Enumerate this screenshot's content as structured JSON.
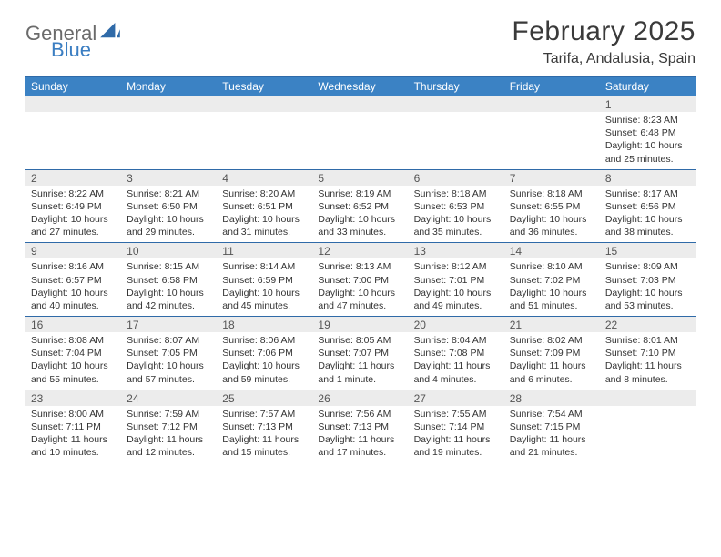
{
  "logo": {
    "word1": "General",
    "word2": "Blue",
    "color1": "#6b6b6b",
    "color2": "#3b7ec2"
  },
  "title": "February 2025",
  "location": "Tarifa, Andalusia, Spain",
  "colors": {
    "header_bar": "#3b82c4",
    "header_border": "#2f6aa8",
    "daynum_bg": "#ececec",
    "text": "#333333"
  },
  "weekdays": [
    "Sunday",
    "Monday",
    "Tuesday",
    "Wednesday",
    "Thursday",
    "Friday",
    "Saturday"
  ],
  "weeks": [
    [
      {
        "n": "",
        "sunrise": "",
        "sunset": "",
        "daylight": ""
      },
      {
        "n": "",
        "sunrise": "",
        "sunset": "",
        "daylight": ""
      },
      {
        "n": "",
        "sunrise": "",
        "sunset": "",
        "daylight": ""
      },
      {
        "n": "",
        "sunrise": "",
        "sunset": "",
        "daylight": ""
      },
      {
        "n": "",
        "sunrise": "",
        "sunset": "",
        "daylight": ""
      },
      {
        "n": "",
        "sunrise": "",
        "sunset": "",
        "daylight": ""
      },
      {
        "n": "1",
        "sunrise": "Sunrise: 8:23 AM",
        "sunset": "Sunset: 6:48 PM",
        "daylight": "Daylight: 10 hours and 25 minutes."
      }
    ],
    [
      {
        "n": "2",
        "sunrise": "Sunrise: 8:22 AM",
        "sunset": "Sunset: 6:49 PM",
        "daylight": "Daylight: 10 hours and 27 minutes."
      },
      {
        "n": "3",
        "sunrise": "Sunrise: 8:21 AM",
        "sunset": "Sunset: 6:50 PM",
        "daylight": "Daylight: 10 hours and 29 minutes."
      },
      {
        "n": "4",
        "sunrise": "Sunrise: 8:20 AM",
        "sunset": "Sunset: 6:51 PM",
        "daylight": "Daylight: 10 hours and 31 minutes."
      },
      {
        "n": "5",
        "sunrise": "Sunrise: 8:19 AM",
        "sunset": "Sunset: 6:52 PM",
        "daylight": "Daylight: 10 hours and 33 minutes."
      },
      {
        "n": "6",
        "sunrise": "Sunrise: 8:18 AM",
        "sunset": "Sunset: 6:53 PM",
        "daylight": "Daylight: 10 hours and 35 minutes."
      },
      {
        "n": "7",
        "sunrise": "Sunrise: 8:18 AM",
        "sunset": "Sunset: 6:55 PM",
        "daylight": "Daylight: 10 hours and 36 minutes."
      },
      {
        "n": "8",
        "sunrise": "Sunrise: 8:17 AM",
        "sunset": "Sunset: 6:56 PM",
        "daylight": "Daylight: 10 hours and 38 minutes."
      }
    ],
    [
      {
        "n": "9",
        "sunrise": "Sunrise: 8:16 AM",
        "sunset": "Sunset: 6:57 PM",
        "daylight": "Daylight: 10 hours and 40 minutes."
      },
      {
        "n": "10",
        "sunrise": "Sunrise: 8:15 AM",
        "sunset": "Sunset: 6:58 PM",
        "daylight": "Daylight: 10 hours and 42 minutes."
      },
      {
        "n": "11",
        "sunrise": "Sunrise: 8:14 AM",
        "sunset": "Sunset: 6:59 PM",
        "daylight": "Daylight: 10 hours and 45 minutes."
      },
      {
        "n": "12",
        "sunrise": "Sunrise: 8:13 AM",
        "sunset": "Sunset: 7:00 PM",
        "daylight": "Daylight: 10 hours and 47 minutes."
      },
      {
        "n": "13",
        "sunrise": "Sunrise: 8:12 AM",
        "sunset": "Sunset: 7:01 PM",
        "daylight": "Daylight: 10 hours and 49 minutes."
      },
      {
        "n": "14",
        "sunrise": "Sunrise: 8:10 AM",
        "sunset": "Sunset: 7:02 PM",
        "daylight": "Daylight: 10 hours and 51 minutes."
      },
      {
        "n": "15",
        "sunrise": "Sunrise: 8:09 AM",
        "sunset": "Sunset: 7:03 PM",
        "daylight": "Daylight: 10 hours and 53 minutes."
      }
    ],
    [
      {
        "n": "16",
        "sunrise": "Sunrise: 8:08 AM",
        "sunset": "Sunset: 7:04 PM",
        "daylight": "Daylight: 10 hours and 55 minutes."
      },
      {
        "n": "17",
        "sunrise": "Sunrise: 8:07 AM",
        "sunset": "Sunset: 7:05 PM",
        "daylight": "Daylight: 10 hours and 57 minutes."
      },
      {
        "n": "18",
        "sunrise": "Sunrise: 8:06 AM",
        "sunset": "Sunset: 7:06 PM",
        "daylight": "Daylight: 10 hours and 59 minutes."
      },
      {
        "n": "19",
        "sunrise": "Sunrise: 8:05 AM",
        "sunset": "Sunset: 7:07 PM",
        "daylight": "Daylight: 11 hours and 1 minute."
      },
      {
        "n": "20",
        "sunrise": "Sunrise: 8:04 AM",
        "sunset": "Sunset: 7:08 PM",
        "daylight": "Daylight: 11 hours and 4 minutes."
      },
      {
        "n": "21",
        "sunrise": "Sunrise: 8:02 AM",
        "sunset": "Sunset: 7:09 PM",
        "daylight": "Daylight: 11 hours and 6 minutes."
      },
      {
        "n": "22",
        "sunrise": "Sunrise: 8:01 AM",
        "sunset": "Sunset: 7:10 PM",
        "daylight": "Daylight: 11 hours and 8 minutes."
      }
    ],
    [
      {
        "n": "23",
        "sunrise": "Sunrise: 8:00 AM",
        "sunset": "Sunset: 7:11 PM",
        "daylight": "Daylight: 11 hours and 10 minutes."
      },
      {
        "n": "24",
        "sunrise": "Sunrise: 7:59 AM",
        "sunset": "Sunset: 7:12 PM",
        "daylight": "Daylight: 11 hours and 12 minutes."
      },
      {
        "n": "25",
        "sunrise": "Sunrise: 7:57 AM",
        "sunset": "Sunset: 7:13 PM",
        "daylight": "Daylight: 11 hours and 15 minutes."
      },
      {
        "n": "26",
        "sunrise": "Sunrise: 7:56 AM",
        "sunset": "Sunset: 7:13 PM",
        "daylight": "Daylight: 11 hours and 17 minutes."
      },
      {
        "n": "27",
        "sunrise": "Sunrise: 7:55 AM",
        "sunset": "Sunset: 7:14 PM",
        "daylight": "Daylight: 11 hours and 19 minutes."
      },
      {
        "n": "28",
        "sunrise": "Sunrise: 7:54 AM",
        "sunset": "Sunset: 7:15 PM",
        "daylight": "Daylight: 11 hours and 21 minutes."
      },
      {
        "n": "",
        "sunrise": "",
        "sunset": "",
        "daylight": ""
      }
    ]
  ]
}
